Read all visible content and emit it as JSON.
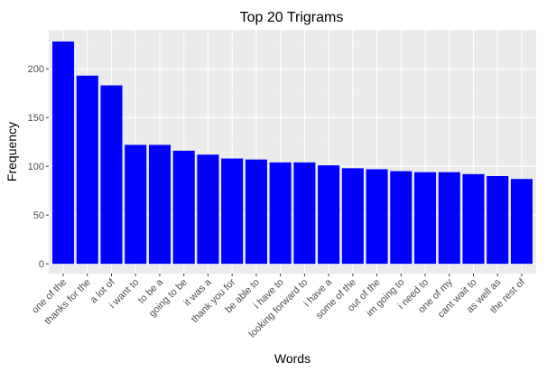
{
  "chart_data": {
    "type": "bar",
    "title": "Top 20 Trigrams",
    "xlabel": "Words",
    "ylabel": "Frequency",
    "categories": [
      "one of the",
      "thanks for the",
      "a lot of",
      "i want to",
      "to be a",
      "going to be",
      "it was a",
      "thank you for",
      "be able to",
      "i have to",
      "looking forward to",
      "i have a",
      "some of the",
      "out of the",
      "im going to",
      "i need to",
      "one of my",
      "cant wait to",
      "as well as",
      "the rest of"
    ],
    "values": [
      228,
      193,
      183,
      122,
      122,
      116,
      112,
      108,
      107,
      104,
      104,
      101,
      98,
      97,
      95,
      94,
      94,
      92,
      90,
      87
    ],
    "ylim": [
      -10,
      240
    ],
    "yticks": [
      0,
      50,
      100,
      150,
      200
    ],
    "grid": true,
    "colors": {
      "bar": "#0000FF",
      "panel": "#EBEBEB",
      "grid_major": "#FFFFFF",
      "grid_minor": "#F5F5F5",
      "tick_text": "#4D4D4D",
      "tick_mark": "#333333"
    }
  }
}
